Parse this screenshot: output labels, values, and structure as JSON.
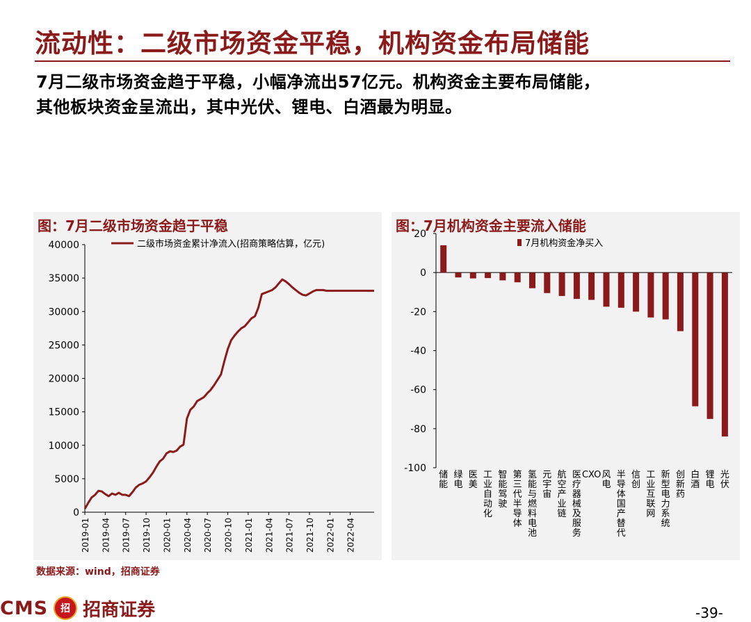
{
  "header": {
    "title": "流动性：二级市场资金平稳，机构资金布局储能",
    "summary_line1": "7月二级市场资金趋于平稳，小幅净流出57亿元。机构资金主要布局储能，",
    "summary_line2": "其他板块资金呈流出，其中光伏、锂电、白酒最为明显。"
  },
  "colors": {
    "accent": "#8B1A1A",
    "panel_bg": "#f2f2f2"
  },
  "left_panel": {
    "title": "图：7月二级市场资金趋于平稳"
  },
  "right_panel": {
    "title": "图：7月机构资金主要流入储能"
  },
  "chart_data": [
    {
      "type": "line",
      "legend": "二级市场资金累计净流入(招商策略估算，亿元)",
      "legend_position": "top",
      "ylim": [
        0,
        40000
      ],
      "yticks": [
        0,
        5000,
        10000,
        15000,
        20000,
        25000,
        30000,
        35000,
        40000
      ],
      "xticks": [
        "2019-01",
        "2019-04",
        "2019-07",
        "2019-10",
        "2020-01",
        "2020-04",
        "2020-07",
        "2020-10",
        "2021-01",
        "2021-04",
        "2021-07",
        "2021-10",
        "2022-01",
        "2022-04"
      ],
      "series": [
        {
          "name": "二级市场资金累计净流入(招商策略估算，亿元)",
          "color": "#8B1A1A",
          "x": [
            0,
            0.5,
            1,
            1.5,
            2,
            2.5,
            3,
            3.5,
            4,
            4.5,
            5,
            5.5,
            6,
            6.5,
            7,
            7.5,
            8,
            8.5,
            9,
            9.5,
            10,
            10.5,
            11,
            11.5,
            12,
            12.5,
            13,
            13.5,
            14,
            14.5,
            15,
            15.5,
            16,
            16.5,
            17,
            17.5,
            18,
            18.5,
            19,
            19.5,
            20,
            20.5,
            21,
            21.5,
            22,
            22.5,
            23,
            23.5,
            24,
            24.5,
            25,
            25.5,
            26,
            26.5,
            27,
            27.5,
            28,
            28.5,
            29,
            29.5,
            30,
            30.5,
            31,
            31.5,
            32,
            32.5,
            33,
            33.5,
            34,
            34.5,
            35,
            35.5,
            36,
            36.5,
            37,
            37.5,
            38,
            38.5,
            39,
            39.5,
            40,
            40.5,
            41,
            41.5,
            42,
            42.5
          ],
          "values": [
            500,
            1400,
            2200,
            2600,
            3200,
            3100,
            2700,
            2400,
            2800,
            2600,
            2900,
            2600,
            2600,
            2400,
            3000,
            3700,
            4100,
            4300,
            4600,
            5200,
            5900,
            6800,
            7600,
            8000,
            8800,
            9100,
            9000,
            9200,
            9800,
            10100,
            14000,
            15300,
            15800,
            16600,
            16900,
            17200,
            17800,
            18300,
            19000,
            19800,
            20600,
            22600,
            24400,
            25700,
            26400,
            27000,
            27500,
            27800,
            28400,
            29000,
            29300,
            30600,
            32600,
            32800,
            33000,
            33200,
            33600,
            34200,
            34800,
            34500,
            34100,
            33600,
            33200,
            32800,
            32500,
            32400,
            32700,
            33000,
            33200,
            33200,
            33200,
            33100,
            33100,
            33100,
            33100,
            33100,
            33100,
            33100,
            33100,
            33100,
            33100,
            33100,
            33100,
            33100,
            33100,
            33100
          ]
        }
      ]
    },
    {
      "type": "bar",
      "legend": "7月机构资金净买入",
      "legend_position": "top",
      "ylim": [
        -100,
        20
      ],
      "yticks": [
        20,
        0,
        -20,
        -40,
        -60,
        -80,
        -100
      ],
      "categories": [
        "储能",
        "绿电",
        "医美",
        "工业自动化",
        "智能驾驶",
        "第三代半导体",
        "氢能与燃料电池",
        "元宇宙",
        "航空产业链",
        "医疗器械及服务",
        "CXO",
        "风电",
        "半导体国产替代",
        "信创",
        "工业互联网",
        "新型电力系统",
        "创新药",
        "白酒",
        "锂电",
        "光伏"
      ],
      "series": [
        {
          "name": "7月机构资金净买入",
          "color": "#8B1A1A",
          "values": [
            14,
            -2.5,
            -3,
            -2.8,
            -4,
            -5,
            -8,
            -10.5,
            -12,
            -13.5,
            -14,
            -17.5,
            -18,
            -20,
            -23,
            -24,
            -30,
            -68.5,
            -75,
            -84
          ]
        }
      ]
    }
  ],
  "footer": {
    "source": "数据来源：wind，招商证券",
    "logo_cms": "CMS",
    "logo_badge": "招",
    "logo_cn": "招商证券",
    "page": "-39-"
  }
}
